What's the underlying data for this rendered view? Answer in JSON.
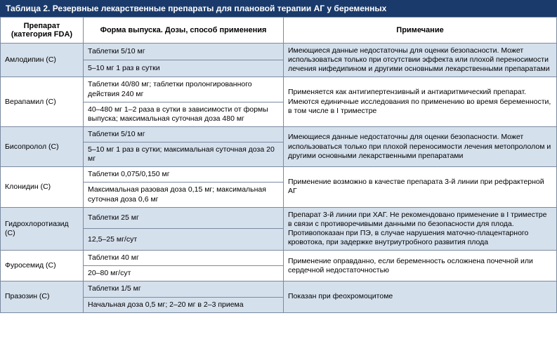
{
  "title": "Таблица 2. Резервные лекарственные препараты для плановой терапии АГ у беременных",
  "headers": {
    "drug": "Препарат (категория FDA)",
    "form": "Форма выпуска. Дозы, способ применения",
    "note": "Примечание"
  },
  "colors": {
    "header_bg": "#1a3a6b",
    "header_fg": "#ffffff",
    "row_blue": "#d5e0ed",
    "row_white": "#ffffff",
    "border": "#7a8aa0"
  },
  "drugs": [
    {
      "name": "Амлодипин (С)",
      "shade": "blue",
      "forms": [
        "Таблетки 5/10 мг",
        "5–10 мг 1 раз в сутки"
      ],
      "note": "Имеющиеся данные недостаточны для оценки безопасности. Может использоваться только при отсутствии эффекта или плохой переносимости лечения нифедипином и другими основными лекарственными препаратами"
    },
    {
      "name": "Верапамил (С)",
      "shade": "white",
      "forms": [
        "Таблетки 40/80 мг; таблетки пролонгированного действия 240 мг",
        "40–480 мг 1–2 раза в сутки в зависимости от формы выпуска; максимальная суточная доза 480 мг"
      ],
      "note": "Применяется как антигипертензивный и антиаритмический препарат. Имеются единичные исследования по применению во время беременности, в том числе в I триместре"
    },
    {
      "name": "Бисопролол (С)",
      "shade": "blue",
      "forms": [
        "Таблетки 5/10 мг",
        "5–10 мг 1 раз в сутки; максимальная суточная доза 20 мг"
      ],
      "note": "Имеющиеся данные недостаточны для оценки безопасности. Может использоваться только при плохой переносимости лечения метопрололом и другими основными лекарственными препаратами"
    },
    {
      "name": "Клонидин (С)",
      "shade": "white",
      "forms": [
        "Таблетки 0,075/0,150 мг",
        "Максимальная разовая доза 0,15 мг; максимальная суточная доза 0,6 мг"
      ],
      "note": "Применение возможно в качестве препарата 3-й линии при рефрактерной АГ"
    },
    {
      "name": "Гидрохлоротиазид (С)",
      "shade": "blue",
      "forms": [
        "Таблетки 25 мг",
        "12,5–25 мг/сут"
      ],
      "note": "Препарат 3-й линии при ХАГ. Не рекомендовано применение в I триместре в связи с противоречивыми данными по безопасности для плода. Противопоказан при ПЭ, в случае нарушения маточно-плацентарного кровотока, при задержке внутриутробного развития плода"
    },
    {
      "name": "Фуросемид (С)",
      "shade": "white",
      "forms": [
        "Таблетки 40 мг",
        "20–80 мг/сут"
      ],
      "note": "Применение оправданно, если беременность осложнена почечной или сердечной недостаточностью"
    },
    {
      "name": "Празозин (С)",
      "shade": "blue",
      "forms": [
        "Таблетки 1/5 мг",
        "Начальная доза 0,5 мг; 2–20 мг в 2–3 приема"
      ],
      "note": "Показан при феохромоцитоме"
    }
  ]
}
